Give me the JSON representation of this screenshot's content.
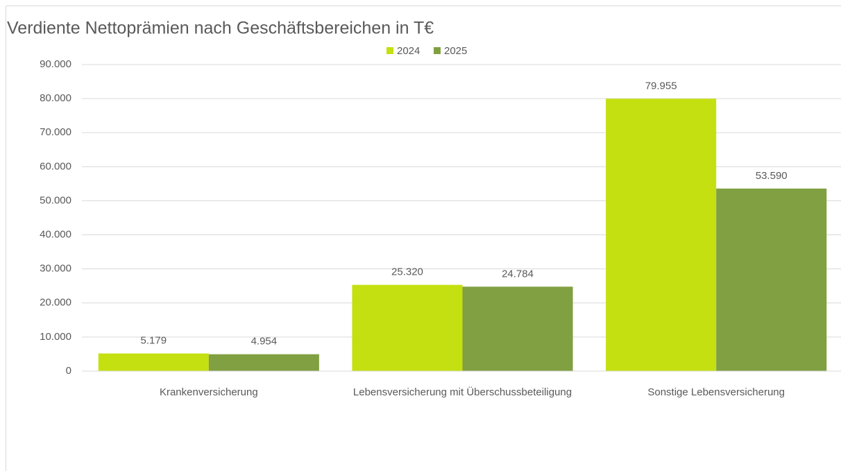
{
  "chart_data": {
    "type": "bar",
    "title": "Verdiente Nettoprämien nach Geschäftsbereichen in T€",
    "categories": [
      "Krankenversicherung",
      "Lebensversicherung mit Überschussbeteiligung",
      "Sonstige Lebensversicherung"
    ],
    "series": [
      {
        "name": "2024",
        "color": "#c5e011",
        "values": [
          5179,
          25320,
          79955
        ],
        "value_labels": [
          "5.179",
          "25.320",
          "79.955"
        ]
      },
      {
        "name": "2025",
        "color": "#81a042",
        "values": [
          4954,
          24784,
          53590
        ],
        "value_labels": [
          "4.954",
          "24.784",
          "53.590"
        ]
      }
    ],
    "ylim": [
      0,
      90000
    ],
    "yticks": [
      0,
      {
        "value": 10000,
        "label": "10.000"
      },
      {
        "value": 20000,
        "label": "20.000"
      },
      {
        "value": 30000,
        "label": "30.000"
      },
      {
        "value": 40000,
        "label": "40.000"
      },
      {
        "value": 50000,
        "label": "50.000"
      },
      {
        "value": 60000,
        "label": "60.000"
      },
      {
        "value": 70000,
        "label": "70.000"
      },
      {
        "value": 80000,
        "label": "80.000"
      },
      {
        "value": 90000,
        "label": "90.000"
      }
    ],
    "grid": true,
    "legend": "top"
  }
}
